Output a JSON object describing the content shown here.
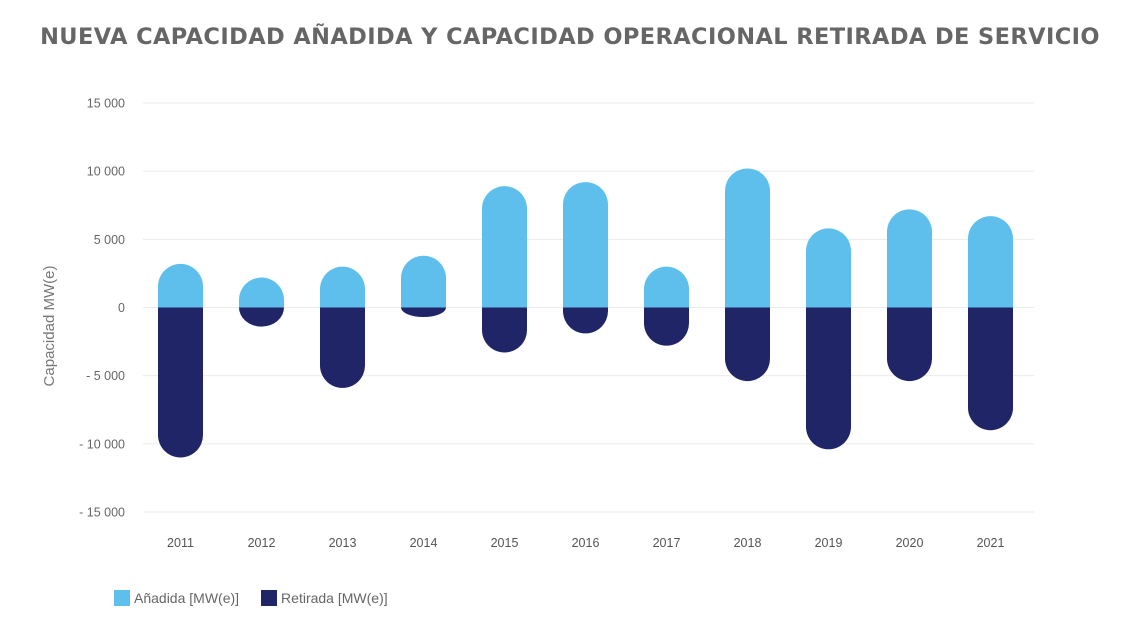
{
  "chart_data": {
    "type": "bar",
    "title": "NUEVA CAPACIDAD AÑADIDA Y CAPACIDAD OPERACIONAL RETIRADA DE SERVICIO",
    "ylabel": "Capacidad MW(e)",
    "xlabel": "",
    "ylim": [
      -15000,
      15000
    ],
    "yticks": [
      15000,
      10000,
      5000,
      0,
      -5000,
      -10000,
      -15000
    ],
    "ytick_labels": [
      "15 000",
      "10 000",
      "5 000",
      "0",
      "- 5 000",
      "- 10 000",
      "- 15 000"
    ],
    "grid": true,
    "legend_position": "bottom-left",
    "categories": [
      "2011",
      "2012",
      "2013",
      "2014",
      "2015",
      "2016",
      "2017",
      "2018",
      "2019",
      "2020",
      "2021"
    ],
    "series": [
      {
        "name": "Añadida [MW(e)]",
        "color": "#5fbfec",
        "values": [
          3200,
          2200,
          3000,
          3800,
          8900,
          9200,
          3000,
          10200,
          5800,
          7200,
          6700
        ]
      },
      {
        "name": "Retirada [MW(e)]",
        "color": "#1f2566",
        "values": [
          -11000,
          -1400,
          -5900,
          -700,
          -3300,
          -1900,
          -2800,
          -5400,
          -10400,
          -5400,
          -9000
        ]
      }
    ]
  }
}
